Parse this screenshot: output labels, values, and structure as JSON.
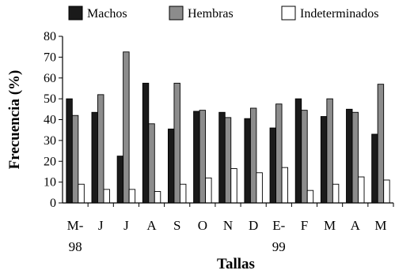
{
  "chart_data": {
    "type": "bar",
    "title": "",
    "xlabel": "Tallas",
    "ylabel": "Frecuencia (%)",
    "ylim": [
      0,
      80
    ],
    "yticks": [
      0,
      10,
      20,
      30,
      40,
      50,
      60,
      70,
      80
    ],
    "categories": [
      {
        "top": "M-",
        "bottom": "98"
      },
      {
        "top": "J",
        "bottom": ""
      },
      {
        "top": "J",
        "bottom": ""
      },
      {
        "top": "A",
        "bottom": ""
      },
      {
        "top": "S",
        "bottom": ""
      },
      {
        "top": "O",
        "bottom": ""
      },
      {
        "top": "N",
        "bottom": ""
      },
      {
        "top": "D",
        "bottom": ""
      },
      {
        "top": "E-",
        "bottom": "99"
      },
      {
        "top": "F",
        "bottom": ""
      },
      {
        "top": "M",
        "bottom": ""
      },
      {
        "top": "A",
        "bottom": ""
      },
      {
        "top": "M",
        "bottom": ""
      }
    ],
    "series": [
      {
        "name": "Machos",
        "color": "#1a1a1a",
        "values": [
          50,
          43.5,
          22.5,
          57.5,
          35.5,
          44,
          43.5,
          40.5,
          36,
          50,
          41.5,
          45,
          33
        ]
      },
      {
        "name": "Hembras",
        "color": "#8c8c8c",
        "values": [
          42,
          52,
          72.5,
          38,
          57.5,
          44.5,
          41,
          45.5,
          47.5,
          44.5,
          50,
          43.5,
          57
        ]
      },
      {
        "name": "Indeterminados",
        "color": "#ffffff",
        "values": [
          9,
          6.5,
          6.5,
          5.5,
          9,
          12,
          16.5,
          14.5,
          17,
          6,
          9,
          12.5,
          11
        ]
      }
    ],
    "legend_position": "top",
    "grid": false
  }
}
